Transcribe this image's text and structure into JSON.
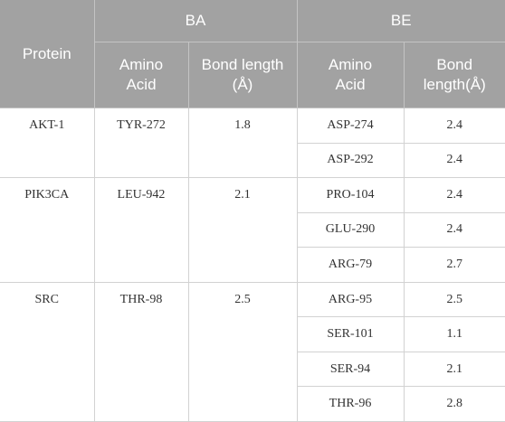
{
  "header": {
    "protein": "Protein",
    "groups": [
      {
        "label": "BA",
        "columns": [
          "Amino Acid",
          "Bond length (Å)"
        ]
      },
      {
        "label": "BE",
        "columns": [
          "Amino Acid",
          "Bond length(Å)"
        ]
      }
    ]
  },
  "rows": [
    {
      "protein": "AKT-1",
      "ba_amino": "TYR-272",
      "ba_bond": 1.8,
      "be": [
        {
          "amino": "ASP-274",
          "bond": 2.4
        },
        {
          "amino": "ASP-292",
          "bond": 2.4
        }
      ]
    },
    {
      "protein": "PIK3CA",
      "ba_amino": "LEU-942",
      "ba_bond": 2.1,
      "be": [
        {
          "amino": "PRO-104",
          "bond": 2.4
        },
        {
          "amino": "GLU-290",
          "bond": 2.4
        },
        {
          "amino": "ARG-79",
          "bond": 2.7
        }
      ]
    },
    {
      "protein": "SRC",
      "ba_amino": "THR-98",
      "ba_bond": 2.5,
      "be": [
        {
          "amino": "ARG-95",
          "bond": 2.5
        },
        {
          "amino": "SER-101",
          "bond": 1.1
        },
        {
          "amino": "SER-94",
          "bond": 2.1
        },
        {
          "amino": "THR-96",
          "bond": 2.8
        }
      ]
    }
  ]
}
